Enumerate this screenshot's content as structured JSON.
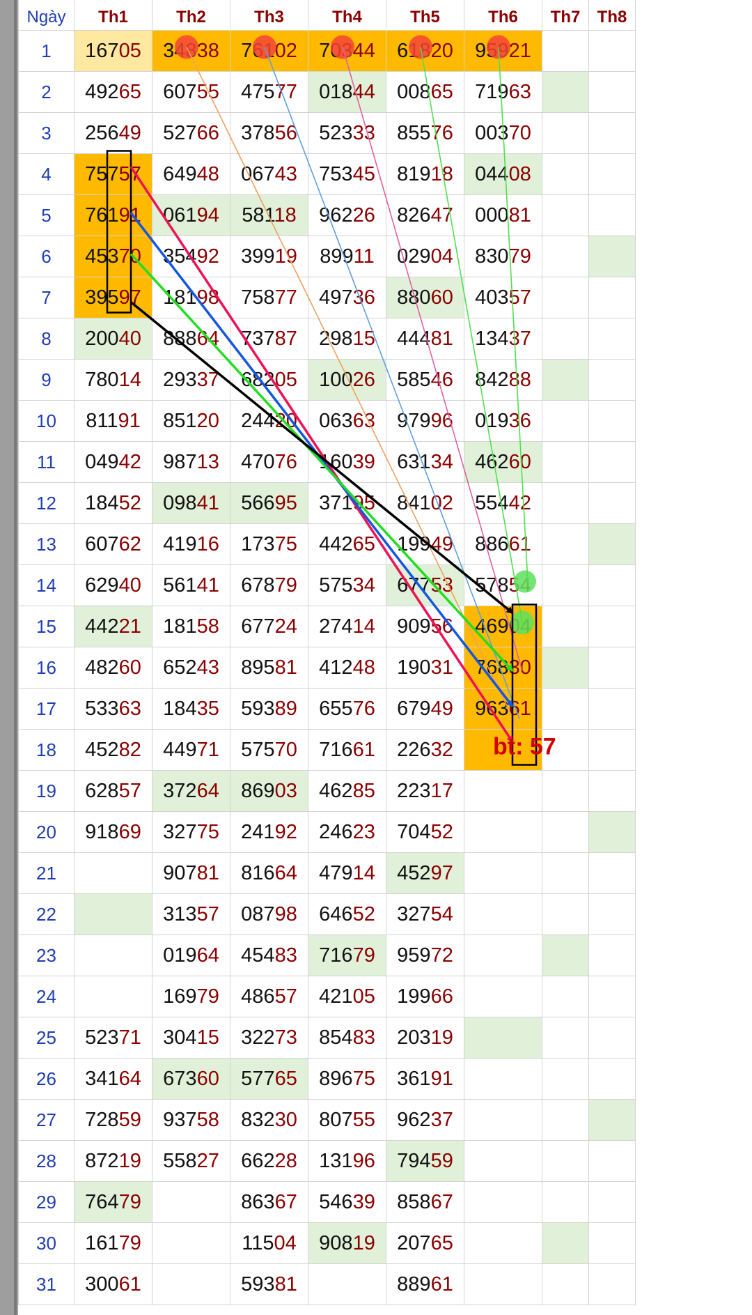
{
  "table": {
    "day_header": "Ngày",
    "month_headers": [
      "Th1",
      "Th2",
      "Th3",
      "Th4",
      "Th5",
      "Th6",
      "Th7",
      "Th8"
    ],
    "rows": [
      {
        "day": "1",
        "cells": [
          "16705",
          "34838",
          "76102",
          "70344",
          "61820",
          "95921",
          "",
          ""
        ]
      },
      {
        "day": "2",
        "cells": [
          "49265",
          "60755",
          "47577",
          "01844",
          "00865",
          "71963",
          "",
          ""
        ]
      },
      {
        "day": "3",
        "cells": [
          "25649",
          "52766",
          "37856",
          "52333",
          "85576",
          "00370",
          "",
          ""
        ]
      },
      {
        "day": "4",
        "cells": [
          "75757",
          "64948",
          "06743",
          "75345",
          "81918",
          "04408",
          "",
          ""
        ]
      },
      {
        "day": "5",
        "cells": [
          "76191",
          "06194",
          "58118",
          "96226",
          "82647",
          "00081",
          "",
          ""
        ]
      },
      {
        "day": "6",
        "cells": [
          "45370",
          "35492",
          "39919",
          "89911",
          "02904",
          "83079",
          "",
          ""
        ]
      },
      {
        "day": "7",
        "cells": [
          "39597",
          "18198",
          "75877",
          "49736",
          "88060",
          "40357",
          "",
          ""
        ]
      },
      {
        "day": "8",
        "cells": [
          "20040",
          "88864",
          "73787",
          "29815",
          "44481",
          "13437",
          "",
          ""
        ]
      },
      {
        "day": "9",
        "cells": [
          "78014",
          "29337",
          "68205",
          "10026",
          "58546",
          "84288",
          "",
          ""
        ]
      },
      {
        "day": "10",
        "cells": [
          "81191",
          "85120",
          "24420",
          "06363",
          "97996",
          "01936",
          "",
          ""
        ]
      },
      {
        "day": "11",
        "cells": [
          "04942",
          "98713",
          "47076",
          "16039",
          "63134",
          "46260",
          "",
          ""
        ]
      },
      {
        "day": "12",
        "cells": [
          "18452",
          "09841",
          "56695",
          "37195",
          "84102",
          "55442",
          "",
          ""
        ]
      },
      {
        "day": "13",
        "cells": [
          "60762",
          "41916",
          "17375",
          "44265",
          "19949",
          "88661",
          "",
          ""
        ]
      },
      {
        "day": "14",
        "cells": [
          "62940",
          "56141",
          "67879",
          "57534",
          "67753",
          "57854",
          "",
          ""
        ]
      },
      {
        "day": "15",
        "cells": [
          "44221",
          "18158",
          "67724",
          "27414",
          "90956",
          "46904",
          "",
          ""
        ]
      },
      {
        "day": "16",
        "cells": [
          "48260",
          "65243",
          "89581",
          "41248",
          "19031",
          "76830",
          "",
          ""
        ]
      },
      {
        "day": "17",
        "cells": [
          "53363",
          "18435",
          "59389",
          "65576",
          "67949",
          "96361",
          "",
          ""
        ]
      },
      {
        "day": "18",
        "cells": [
          "45282",
          "44971",
          "57570",
          "71661",
          "22632",
          "",
          "",
          ""
        ]
      },
      {
        "day": "19",
        "cells": [
          "62857",
          "37264",
          "86903",
          "46285",
          "22317",
          "",
          "",
          ""
        ]
      },
      {
        "day": "20",
        "cells": [
          "91869",
          "32775",
          "24192",
          "24623",
          "70452",
          "",
          "",
          ""
        ]
      },
      {
        "day": "21",
        "cells": [
          "",
          "90781",
          "81664",
          "47914",
          "45297",
          "",
          "",
          ""
        ]
      },
      {
        "day": "22",
        "cells": [
          "",
          "31357",
          "08798",
          "64652",
          "32754",
          "",
          "",
          ""
        ]
      },
      {
        "day": "23",
        "cells": [
          "",
          "01964",
          "45483",
          "71679",
          "95972",
          "",
          "",
          ""
        ]
      },
      {
        "day": "24",
        "cells": [
          "",
          "16979",
          "48657",
          "42105",
          "19966",
          "",
          "",
          ""
        ]
      },
      {
        "day": "25",
        "cells": [
          "52371",
          "30415",
          "32273",
          "85483",
          "20319",
          "",
          "",
          ""
        ]
      },
      {
        "day": "26",
        "cells": [
          "34164",
          "67360",
          "57765",
          "89675",
          "36191",
          "",
          "",
          ""
        ]
      },
      {
        "day": "27",
        "cells": [
          "72859",
          "93758",
          "83230",
          "80755",
          "96237",
          "",
          "",
          ""
        ]
      },
      {
        "day": "28",
        "cells": [
          "87219",
          "55827",
          "66228",
          "13196",
          "79459",
          "",
          "",
          ""
        ]
      },
      {
        "day": "29",
        "cells": [
          "76479",
          "",
          "86367",
          "54639",
          "85867",
          "",
          "",
          ""
        ]
      },
      {
        "day": "30",
        "cells": [
          "16179",
          "",
          "11504",
          "90819",
          "20765",
          "",
          "",
          ""
        ]
      },
      {
        "day": "31",
        "cells": [
          "30061",
          "",
          "59381",
          "",
          "88961",
          "",
          "",
          ""
        ]
      }
    ]
  },
  "annotation": {
    "note": "bt: 57"
  },
  "colors": {
    "orange_highlight": "#ffba00",
    "light_yellow_highlight": "#ffe8a0",
    "green_highlight": "#e1f1d9",
    "header_text": "#8b0000",
    "day_text": "#1f3db3",
    "red_marker": "#f44336",
    "green_marker": "#5de05d"
  }
}
